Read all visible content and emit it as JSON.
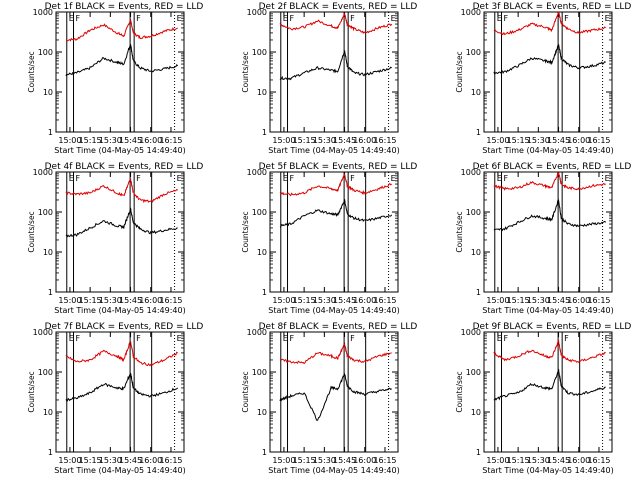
{
  "figure": {
    "panels": [
      {
        "title": "Det 1f  BLACK = Events, RED = LLD"
      },
      {
        "title": "Det 2f  BLACK = Events, RED = LLD"
      },
      {
        "title": "Det 3f  BLACK = Events, RED = LLD"
      },
      {
        "title": "Det 4f  BLACK = Events, RED = LLD"
      },
      {
        "title": "Det 5f  BLACK = Events, RED = LLD"
      },
      {
        "title": "Det 6f  BLACK = Events, RED = LLD"
      },
      {
        "title": "Det 7f  BLACK = Events, RED = LLD"
      },
      {
        "title": "Det 8f  BLACK = Events, RED = LLD"
      },
      {
        "title": "Det 9f  BLACK = Events, RED = LLD"
      }
    ],
    "ylabel": "Counts/sec",
    "xlabel": "Start Time (04-May-05 14:49:40)",
    "xticks": [
      "15:00",
      "15:15",
      "15:30",
      "15:45",
      "16:00",
      "16:15"
    ],
    "yticks": [
      "1",
      "10",
      "100",
      "1000"
    ],
    "markers": [
      "E",
      "F",
      "F",
      "E"
    ]
  },
  "chart_data": {
    "type": "line",
    "yscale": "log",
    "ylim": [
      1,
      1000
    ],
    "xlim_minutes_after_start": [
      0,
      95
    ],
    "marker_minutes_after_start": [
      8,
      13,
      55,
      58,
      71,
      88
    ],
    "series_colors": {
      "Events": "#000000",
      "LLD": "#e00000"
    },
    "panels": [
      {
        "x": [
          "14:57",
          "15:05",
          "15:15",
          "15:25",
          "15:35",
          "15:40",
          "15:45",
          "15:47",
          "15:52",
          "16:00",
          "16:10",
          "16:20"
        ],
        "series": [
          {
            "name": "LLD",
            "values": [
              200,
              210,
              350,
              480,
              300,
              250,
              650,
              300,
              230,
              250,
              330,
              400
            ]
          },
          {
            "name": "Events",
            "values": [
              27,
              30,
              40,
              70,
              55,
              50,
              160,
              60,
              40,
              33,
              38,
              45
            ]
          }
        ]
      },
      {
        "x": [
          "14:57",
          "15:05",
          "15:15",
          "15:25",
          "15:35",
          "15:40",
          "15:45",
          "15:47",
          "15:52",
          "16:00",
          "16:10",
          "16:20"
        ],
        "series": [
          {
            "name": "LLD",
            "values": [
              500,
              380,
              420,
              600,
              450,
              400,
              900,
              500,
              380,
              300,
              400,
              500
            ]
          },
          {
            "name": "Events",
            "values": [
              22,
              22,
              30,
              40,
              35,
              33,
              110,
              45,
              30,
              27,
              33,
              40
            ]
          }
        ]
      },
      {
        "x": [
          "14:57",
          "15:05",
          "15:15",
          "15:25",
          "15:35",
          "15:40",
          "15:45",
          "15:47",
          "15:52",
          "16:00",
          "16:10",
          "16:20"
        ],
        "series": [
          {
            "name": "LLD",
            "values": [
              350,
              280,
              350,
              500,
              420,
              350,
              1000,
              520,
              380,
              300,
              350,
              400
            ]
          },
          {
            "name": "Events",
            "values": [
              30,
              32,
              45,
              70,
              60,
              55,
              150,
              70,
              48,
              40,
              45,
              55
            ]
          }
        ]
      },
      {
        "x": [
          "14:57",
          "15:05",
          "15:15",
          "15:25",
          "15:35",
          "15:40",
          "15:45",
          "15:47",
          "15:52",
          "16:00",
          "16:10",
          "16:20"
        ],
        "series": [
          {
            "name": "LLD",
            "values": [
              300,
              280,
              300,
              450,
              300,
              250,
              700,
              300,
              200,
              180,
              280,
              350
            ]
          },
          {
            "name": "Events",
            "values": [
              25,
              27,
              40,
              60,
              45,
              42,
              120,
              55,
              38,
              30,
              35,
              40
            ]
          }
        ]
      },
      {
        "x": [
          "14:57",
          "15:05",
          "15:15",
          "15:25",
          "15:35",
          "15:40",
          "15:45",
          "15:47",
          "15:52",
          "16:00",
          "16:10",
          "16:20"
        ],
        "series": [
          {
            "name": "LLD",
            "values": [
              300,
              270,
              300,
              450,
              380,
              350,
              900,
              450,
              350,
              300,
              380,
              500
            ]
          },
          {
            "name": "Events",
            "values": [
              45,
              50,
              80,
              110,
              90,
              85,
              200,
              90,
              70,
              60,
              70,
              85
            ]
          }
        ]
      },
      {
        "x": [
          "14:57",
          "15:05",
          "15:15",
          "15:25",
          "15:35",
          "15:40",
          "15:45",
          "15:47",
          "15:52",
          "16:00",
          "16:10",
          "16:20"
        ],
        "series": [
          {
            "name": "LLD",
            "values": [
              450,
              380,
              400,
              550,
              450,
              400,
              1000,
              500,
              400,
              380,
              450,
              500
            ]
          },
          {
            "name": "Events",
            "values": [
              35,
              38,
              55,
              80,
              70,
              65,
              200,
              70,
              50,
              45,
              50,
              55
            ]
          }
        ]
      },
      {
        "x": [
          "14:57",
          "15:05",
          "15:15",
          "15:25",
          "15:35",
          "15:40",
          "15:45",
          "15:47",
          "15:52",
          "16:00",
          "16:10",
          "16:20"
        ],
        "series": [
          {
            "name": "LLD",
            "values": [
              250,
              180,
              200,
              330,
              250,
              200,
              600,
              250,
              170,
              150,
              200,
              300
            ]
          },
          {
            "name": "Events",
            "values": [
              20,
              22,
              30,
              50,
              40,
              38,
              95,
              40,
              28,
              25,
              30,
              40
            ]
          }
        ]
      },
      {
        "x": [
          "14:57",
          "15:05",
          "15:15",
          "15:25",
          "15:35",
          "15:40",
          "15:45",
          "15:47",
          "15:52",
          "16:00",
          "16:10",
          "16:20"
        ],
        "series": [
          {
            "name": "LLD",
            "values": [
              200,
              180,
              170,
              300,
              250,
              220,
              500,
              250,
              200,
              180,
              250,
              300
            ]
          },
          {
            "name": "Events",
            "values": [
              20,
              25,
              30,
              6,
              40,
              38,
              90,
              45,
              32,
              28,
              33,
              38
            ]
          }
        ]
      },
      {
        "x": [
          "14:57",
          "15:05",
          "15:15",
          "15:25",
          "15:35",
          "15:40",
          "15:45",
          "15:47",
          "15:52",
          "16:00",
          "16:10",
          "16:20"
        ],
        "series": [
          {
            "name": "LLD",
            "values": [
              300,
              200,
              250,
              350,
              250,
              230,
              600,
              260,
              200,
              180,
              230,
              300
            ]
          },
          {
            "name": "Events",
            "values": [
              20,
              25,
              30,
              50,
              40,
              38,
              110,
              45,
              30,
              27,
              33,
              42
            ]
          }
        ]
      }
    ]
  }
}
